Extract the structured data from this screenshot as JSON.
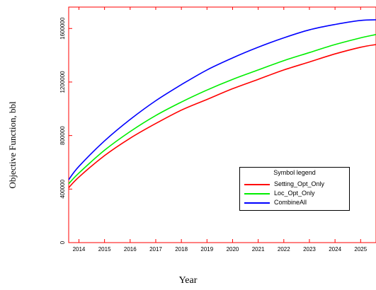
{
  "chart_data": {
    "type": "line",
    "title": "",
    "xlabel": "Year",
    "ylabel": "Objective Function, bbl",
    "x_ticks": [
      "2014",
      "2015",
      "2016",
      "2017",
      "2018",
      "2019",
      "2020",
      "2021",
      "2022",
      "2023",
      "2024",
      "2025"
    ],
    "y_ticks": [
      "0",
      "400000",
      "800000",
      "1200000",
      "1600000"
    ],
    "xlim": [
      2013.6,
      2025.6
    ],
    "ylim": [
      0,
      1760000
    ],
    "grid": false,
    "legend_title": "Symbol legend",
    "legend_position": "lower-right",
    "series": [
      {
        "name": "Setting_Opt_Only",
        "color": "#ff0000",
        "x": [
          2013.6,
          2014,
          2015,
          2016,
          2017,
          2018,
          2019,
          2020,
          2021,
          2022,
          2023,
          2024,
          2025,
          2025.6
        ],
        "values": [
          410000,
          490000,
          650000,
          780000,
          890000,
          990000,
          1070000,
          1150000,
          1220000,
          1290000,
          1350000,
          1410000,
          1460000,
          1480000
        ]
      },
      {
        "name": "Loc_Opt_Only",
        "color": "#00ee00",
        "x": [
          2013.6,
          2014,
          2015,
          2016,
          2017,
          2018,
          2019,
          2020,
          2021,
          2022,
          2023,
          2024,
          2025,
          2025.6
        ],
        "values": [
          440000,
          520000,
          690000,
          830000,
          950000,
          1050000,
          1140000,
          1220000,
          1290000,
          1360000,
          1420000,
          1480000,
          1530000,
          1555000
        ]
      },
      {
        "name": "CombineAll",
        "color": "#0000ff",
        "x": [
          2013.6,
          2014,
          2015,
          2016,
          2017,
          2018,
          2019,
          2020,
          2021,
          2022,
          2023,
          2024,
          2025,
          2025.6
        ],
        "values": [
          470000,
          570000,
          760000,
          920000,
          1060000,
          1180000,
          1290000,
          1380000,
          1460000,
          1530000,
          1590000,
          1630000,
          1660000,
          1665000
        ]
      }
    ]
  },
  "colors": {
    "axis": "#ff0000",
    "tick_label": "#000000"
  }
}
